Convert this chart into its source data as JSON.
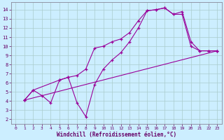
{
  "xlabel": "Windchill (Refroidissement éolien,°C)",
  "bg_color": "#cceeff",
  "line_color": "#990099",
  "grid_color": "#aacccc",
  "xlim": [
    -0.5,
    23.5
  ],
  "ylim": [
    1.5,
    14.8
  ],
  "xticks": [
    0,
    1,
    2,
    3,
    4,
    5,
    6,
    7,
    8,
    9,
    10,
    11,
    12,
    13,
    14,
    15,
    16,
    17,
    18,
    19,
    20,
    21,
    22,
    23
  ],
  "yticks": [
    2,
    3,
    4,
    5,
    6,
    7,
    8,
    9,
    10,
    11,
    12,
    13,
    14
  ],
  "line1_x": [
    1,
    2,
    3,
    4,
    5,
    6,
    7,
    8,
    9,
    10,
    11,
    12,
    13,
    14,
    15,
    16,
    17,
    18,
    19,
    20,
    21,
    22,
    23
  ],
  "line1_y": [
    4.1,
    5.2,
    4.6,
    3.8,
    6.3,
    6.6,
    3.8,
    2.3,
    5.8,
    7.5,
    8.5,
    9.3,
    10.5,
    12.0,
    13.9,
    14.0,
    14.2,
    13.5,
    13.8,
    10.5,
    9.5,
    9.5,
    9.5
  ],
  "line2_x": [
    1,
    2,
    5,
    6,
    7,
    8,
    9,
    10,
    11,
    12,
    13,
    14,
    15,
    16,
    17,
    18,
    19,
    20,
    21,
    22,
    23
  ],
  "line2_y": [
    4.1,
    5.2,
    6.3,
    6.6,
    6.8,
    7.5,
    9.8,
    10.0,
    10.5,
    10.8,
    11.5,
    12.8,
    13.9,
    14.0,
    14.2,
    13.5,
    13.5,
    10.0,
    9.5,
    9.5,
    9.5
  ],
  "line3_x": [
    1,
    23
  ],
  "line3_y": [
    4.1,
    9.5
  ],
  "marker": "+"
}
